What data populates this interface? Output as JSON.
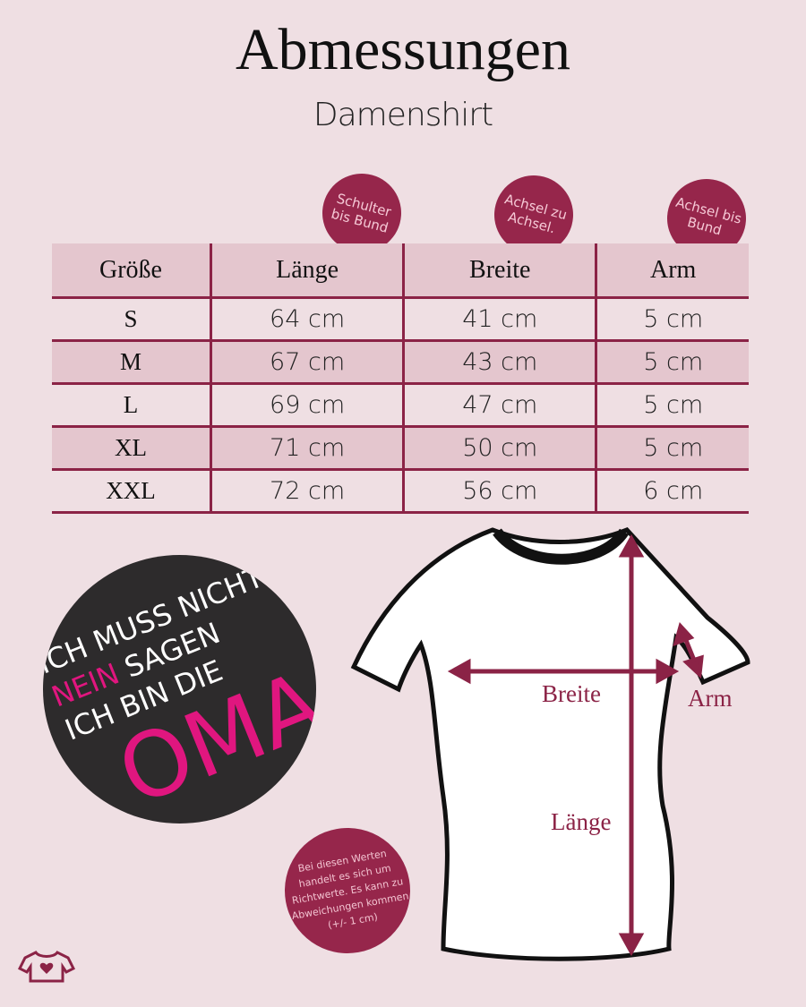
{
  "header": {
    "title": "Abmessungen",
    "subtitle": "Damenshirt"
  },
  "badges": [
    {
      "text": "Schulter bis Bund"
    },
    {
      "text": "Achsel zu Achsel."
    },
    {
      "text": "Achsel bis Bund"
    }
  ],
  "table": {
    "columns": [
      "Größe",
      "Länge",
      "Breite",
      "Arm"
    ],
    "rows": [
      [
        "S",
        "64 cm",
        "41 cm",
        "5 cm"
      ],
      [
        "M",
        "67 cm",
        "43 cm",
        "5 cm"
      ],
      [
        "L",
        "69 cm",
        "47 cm",
        "5 cm"
      ],
      [
        "XL",
        "71 cm",
        "50 cm",
        "5 cm"
      ],
      [
        "XXL",
        "72 cm",
        "56 cm",
        "6 cm"
      ]
    ]
  },
  "design": {
    "line1": "ICH MUSS NICHT",
    "line2a": "NEIN",
    "line2b": "SAGEN",
    "line3": "ICH BIN DIE",
    "line4": "OMA"
  },
  "diagram": {
    "breite": "Breite",
    "arm": "Arm",
    "laenge": "Länge"
  },
  "note": "Bei diesen Werten handelt es sich um Richtwerte. Es kann zu Abweichungen kommen (+/- 1 cm)",
  "colors": {
    "accent": "#8b2346",
    "background": "#efdfe3",
    "row_shade": "#e4c6ce",
    "design_pink": "#e0167f"
  },
  "logo": "shirt-heart-logo"
}
